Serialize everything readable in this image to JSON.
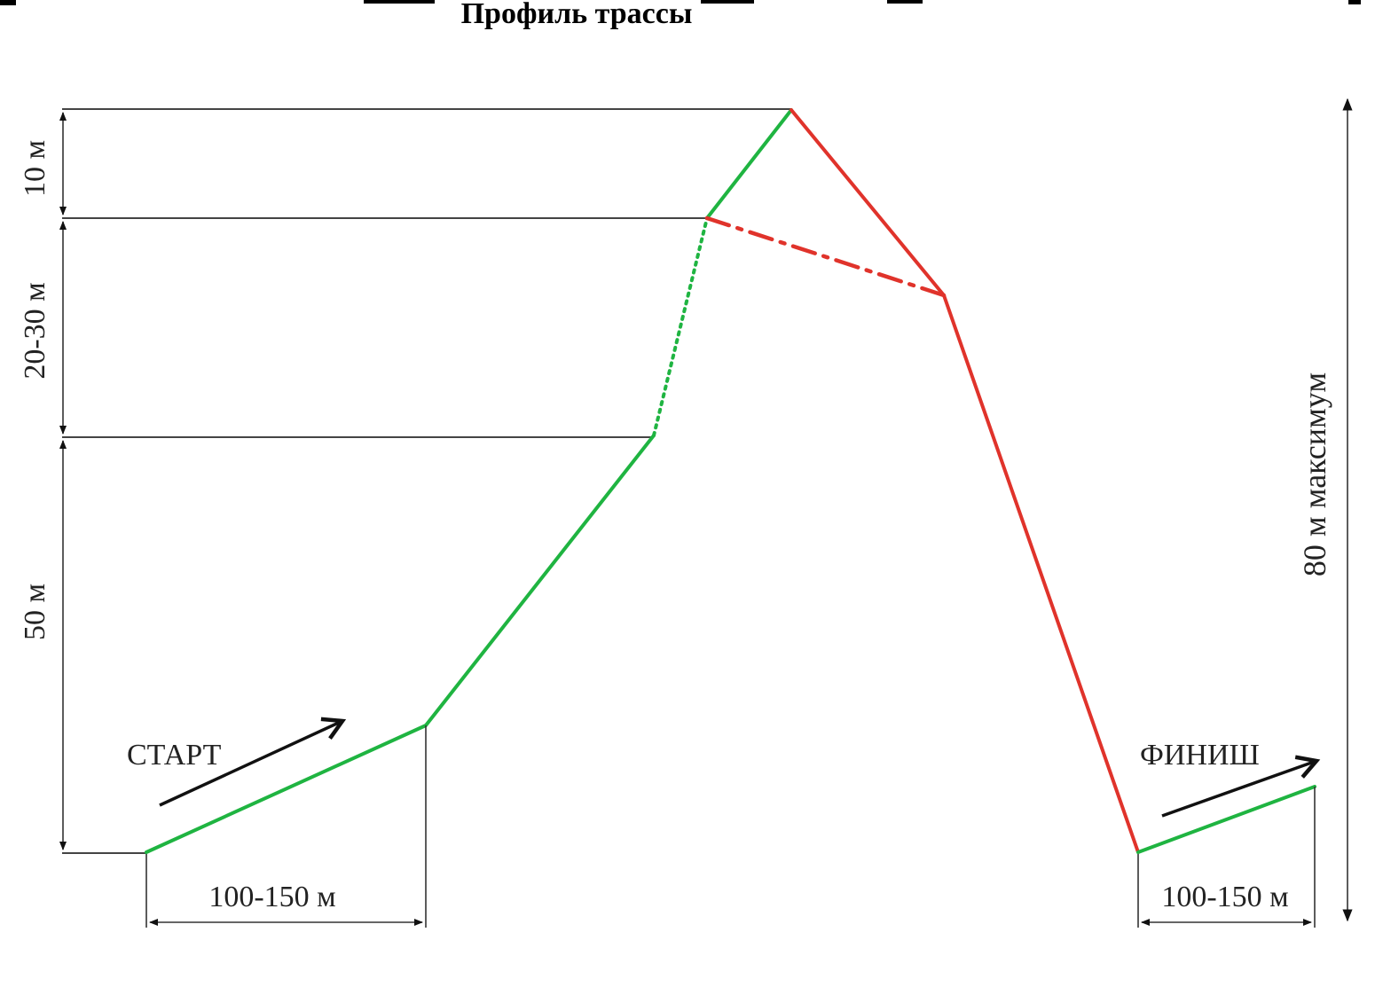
{
  "title": "Профиль трассы",
  "labels": {
    "start": "СТАРТ",
    "finish": "ФИНИШ",
    "dim_top": "10 м",
    "dim_mid": "20-30 м",
    "dim_bottom": "50 м",
    "dim_start_length": "100-150 м",
    "dim_finish_length": "100-150 м",
    "dim_total_height": "80 м максимум"
  },
  "colors": {
    "climb": "#1fb441",
    "descent": "#e0332b",
    "dimension": "#333333",
    "arrow": "#111111"
  }
}
